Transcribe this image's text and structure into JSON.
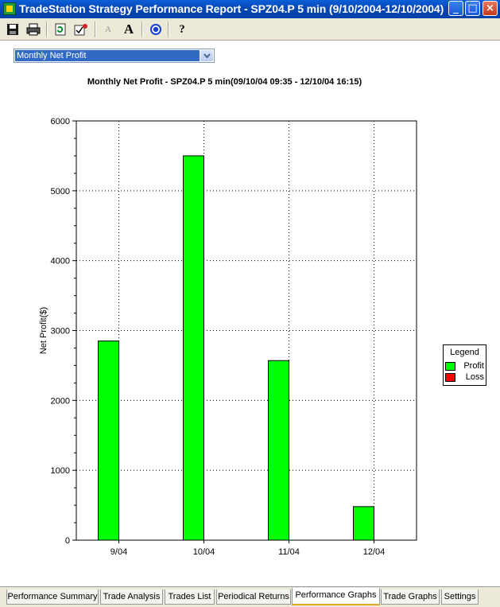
{
  "window": {
    "title": "TradeStation Strategy Performance Report - SPZ04.P 5 min (9/10/2004-12/10/2004)",
    "controls": {
      "minimize": "_",
      "maximize": "□",
      "close": "×"
    }
  },
  "toolbar": {
    "items": [
      {
        "icon": "save-icon"
      },
      {
        "icon": "print-icon"
      },
      {
        "icon": "refresh-icon"
      },
      {
        "icon": "settings-check-icon"
      },
      {
        "icon": "font-decrease-icon",
        "label": "A"
      },
      {
        "icon": "font-increase-icon",
        "label": "A"
      },
      {
        "icon": "target-icon"
      },
      {
        "icon": "help-icon",
        "label": "?"
      }
    ]
  },
  "report_selector": {
    "value": "Monthly Net Profit"
  },
  "chart_data": {
    "type": "bar",
    "title": "Monthly Net Profit - SPZ04.P 5 min(09/10/04 09:35 - 12/10/04 16:15)",
    "xlabel": "",
    "ylabel": "Net Profit($)",
    "categories": [
      "9/04",
      "10/04",
      "11/04",
      "12/04"
    ],
    "values": [
      2850,
      5500,
      2570,
      480
    ],
    "ylim": [
      0,
      6000
    ],
    "yticks": [
      "0",
      "1000",
      "2000",
      "3000",
      "4000",
      "5000",
      "6000"
    ],
    "grid": true,
    "legend": {
      "title": "Legend",
      "placement": "right",
      "entries": [
        {
          "label": "Profit",
          "color": "#00ff00"
        },
        {
          "label": "Loss",
          "color": "#ff0000"
        }
      ]
    },
    "bar_color": "#00ff00"
  },
  "tabs": [
    {
      "label": "Performance Summary",
      "active": false
    },
    {
      "label": "Trade Analysis",
      "active": false
    },
    {
      "label": "Trades List",
      "active": false
    },
    {
      "label": "Periodical Returns",
      "active": false
    },
    {
      "label": "Performance Graphs",
      "active": true
    },
    {
      "label": "Trade Graphs",
      "active": false
    },
    {
      "label": "Settings",
      "active": false
    }
  ]
}
